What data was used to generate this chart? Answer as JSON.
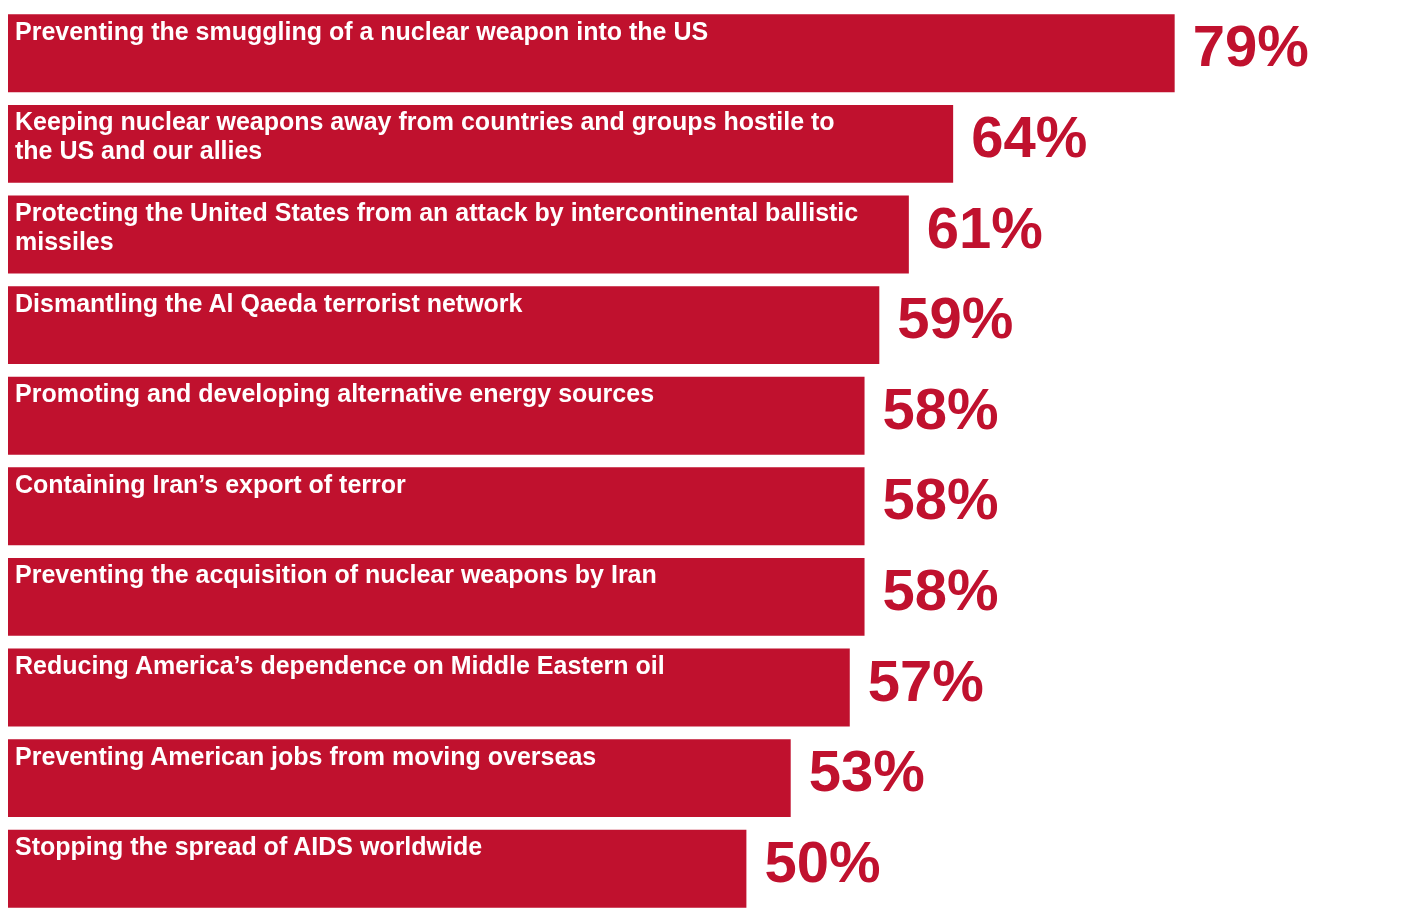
{
  "chart_data": {
    "type": "bar",
    "orientation": "horizontal",
    "categories": [
      "Preventing the smuggling of a nuclear weapon into the US",
      "Keeping nuclear weapons away from countries and groups hostile to the US and our allies",
      "Protecting the United States from an attack by intercontinental ballistic missiles",
      "Dismantling the Al Qaeda terrorist network",
      "Promoting and developing alternative energy sources",
      "Containing Iran’s export of terror",
      "Preventing the acquisition of nuclear weapons by Iran",
      "Reducing America’s dependence on Middle Eastern oil",
      "Preventing American jobs from moving overseas",
      "Stopping the spread of AIDS worldwide"
    ],
    "values": [
      79,
      64,
      61,
      59,
      58,
      58,
      58,
      57,
      53,
      50
    ],
    "value_labels": [
      "79%",
      "64%",
      "61%",
      "59%",
      "58%",
      "58%",
      "58%",
      "57%",
      "53%",
      "50%"
    ],
    "color": "#c0112e",
    "legend": false
  }
}
